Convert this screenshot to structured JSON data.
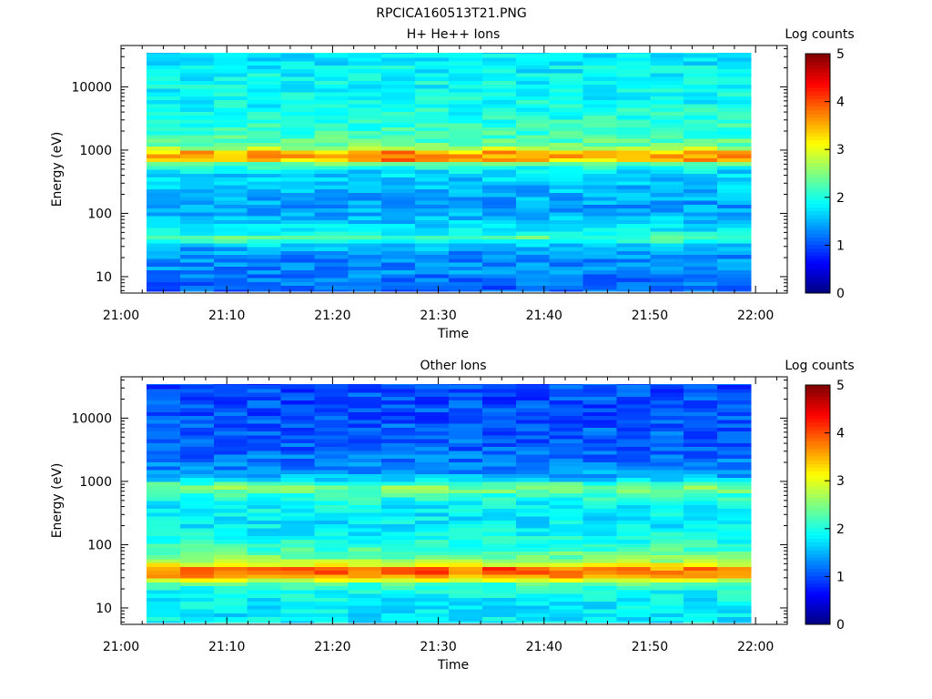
{
  "figure_title": "RPCICA160513T21.PNG",
  "chart_data": [
    {
      "type": "heatmap",
      "title": "H+ He++ Ions",
      "xlabel": "Time",
      "ylabel": "Energy (eV)",
      "y_scale": "log",
      "ylim": [
        5.5,
        45000
      ],
      "xlim": [
        "21:00",
        "22:03"
      ],
      "x_ticks": [
        "21:00",
        "21:10",
        "21:20",
        "21:30",
        "21:40",
        "21:50",
        "22:00"
      ],
      "y_ticks": [
        "10",
        "100",
        "1000",
        "10000"
      ],
      "time_bins": [
        "21:02",
        "21:06",
        "21:09",
        "21:12",
        "21:15",
        "21:19",
        "21:22",
        "21:25",
        "21:28",
        "21:32",
        "21:35",
        "21:38",
        "21:41",
        "21:45",
        "21:48",
        "21:51",
        "21:54",
        "21:58"
      ],
      "colorbar": {
        "label": "Log counts",
        "range": [
          0,
          5
        ],
        "ticks": [
          "0",
          "1",
          "2",
          "3",
          "4",
          "5"
        ]
      },
      "data_note_profile": "typical log-count level versus energy",
      "energy_profile_eV": [
        6,
        9,
        12,
        16,
        20,
        25,
        30,
        36,
        42,
        50,
        60,
        75,
        100,
        140,
        200,
        300,
        450,
        600,
        700,
        800,
        900,
        1000,
        1200,
        1600,
        2200,
        3500,
        6000,
        12000,
        25000,
        45000
      ],
      "log_counts_profile": [
        1.1,
        1.2,
        1.3,
        1.3,
        1.3,
        1.4,
        1.5,
        2.0,
        2.3,
        1.9,
        1.7,
        1.6,
        1.5,
        1.4,
        1.5,
        1.6,
        1.7,
        2.2,
        3.2,
        3.6,
        3.4,
        3.0,
        2.4,
        2.2,
        2.1,
        2.0,
        1.9,
        1.9,
        1.8,
        1.8
      ],
      "peak_band_eV": [
        650,
        1000
      ],
      "peak_log_counts_by_bin": [
        3.2,
        3.6,
        3.3,
        3.6,
        3.2,
        3.6,
        3.6,
        3.8,
        3.6,
        3.5,
        3.8,
        3.6,
        3.5,
        3.5,
        3.4,
        3.6,
        3.7,
        3.7
      ]
    },
    {
      "type": "heatmap",
      "title": "Other Ions",
      "xlabel": "Time",
      "ylabel": "Energy (eV)",
      "y_scale": "log",
      "ylim": [
        5.5,
        45000
      ],
      "xlim": [
        "21:00",
        "22:03"
      ],
      "x_ticks": [
        "21:00",
        "21:10",
        "21:20",
        "21:30",
        "21:40",
        "21:50",
        "22:00"
      ],
      "y_ticks": [
        "10",
        "100",
        "1000",
        "10000"
      ],
      "time_bins": [
        "21:02",
        "21:06",
        "21:09",
        "21:12",
        "21:15",
        "21:19",
        "21:22",
        "21:25",
        "21:28",
        "21:32",
        "21:35",
        "21:38",
        "21:41",
        "21:45",
        "21:48",
        "21:51",
        "21:54",
        "21:58"
      ],
      "colorbar": {
        "label": "Log counts",
        "range": [
          0,
          5
        ],
        "ticks": [
          "0",
          "1",
          "2",
          "3",
          "4",
          "5"
        ]
      },
      "data_note_profile": "typical log-count level versus energy",
      "energy_profile_eV": [
        6,
        9,
        12,
        16,
        20,
        25,
        30,
        36,
        42,
        50,
        60,
        75,
        100,
        140,
        200,
        300,
        450,
        600,
        700,
        800,
        900,
        1000,
        1200,
        1600,
        2200,
        3500,
        6000,
        12000,
        25000,
        45000
      ],
      "log_counts_profile": [
        1.8,
        1.8,
        1.8,
        1.9,
        2.0,
        2.3,
        3.4,
        3.9,
        3.6,
        3.0,
        2.5,
        2.3,
        2.1,
        1.9,
        1.8,
        1.8,
        1.9,
        2.1,
        2.4,
        2.5,
        2.3,
        1.9,
        1.5,
        1.3,
        1.2,
        1.1,
        1.1,
        1.0,
        1.0,
        1.0
      ],
      "peak_band_eV": [
        33,
        45
      ],
      "peak_log_counts_by_bin": [
        3.8,
        4.0,
        3.9,
        4.0,
        4.0,
        3.9,
        3.6,
        4.0,
        4.1,
        3.7,
        4.2,
        3.9,
        4.0,
        3.6,
        4.0,
        3.6,
        3.9,
        3.7
      ]
    }
  ]
}
